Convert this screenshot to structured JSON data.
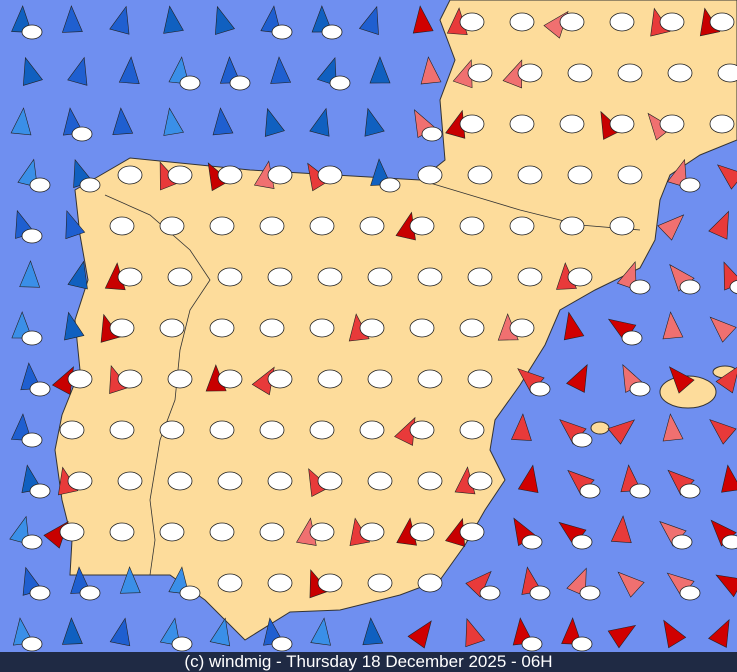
{
  "footer": {
    "text": "(c) windmig - Thursday 18 December 2025 - 06H"
  }
}
